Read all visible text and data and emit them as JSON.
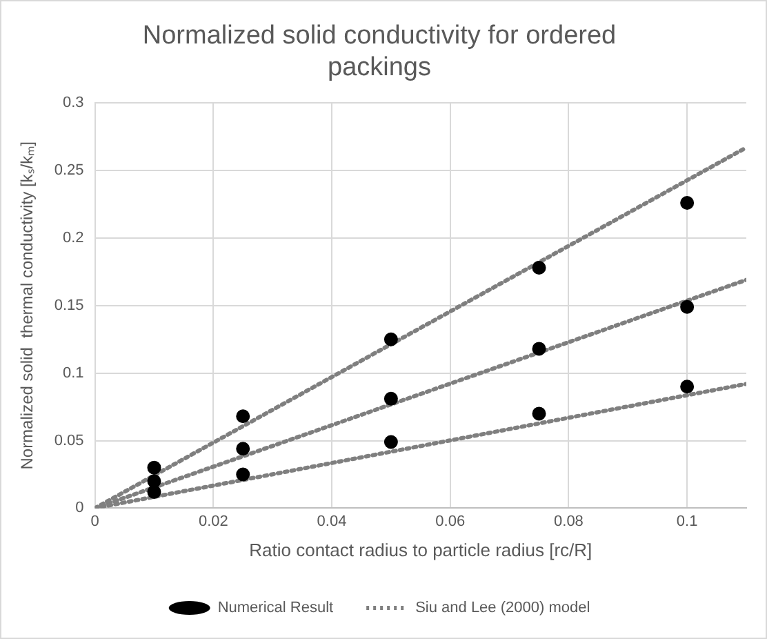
{
  "chart_data": {
    "type": "scatter",
    "title": "Normalized solid conductivity for ordered packings",
    "xlabel": "Ratio contact radius to particle radius [rc/R]",
    "ylabel": "Normalized solid  thermal conductivity [kₛ/kₘ]",
    "xlim": [
      0,
      0.11
    ],
    "xticks": [
      0,
      0.02,
      0.04,
      0.06,
      0.08,
      0.1
    ],
    "ylim": [
      0,
      0.3
    ],
    "yticks": [
      0,
      0.05,
      0.1,
      0.15,
      0.2,
      0.25,
      0.3
    ],
    "grid": true,
    "legend": "bottom",
    "series": [
      {
        "name": "Numerical Result",
        "marker": "circle",
        "color": "#000000",
        "x": [
          0.01,
          0.01,
          0.01,
          0.025,
          0.025,
          0.025,
          0.05,
          0.05,
          0.05,
          0.075,
          0.075,
          0.075,
          0.1,
          0.1,
          0.1
        ],
        "values": [
          0.03,
          0.02,
          0.012,
          0.068,
          0.044,
          0.025,
          0.125,
          0.081,
          0.049,
          0.178,
          0.118,
          0.07,
          0.226,
          0.149,
          0.09
        ]
      },
      {
        "name": "Siu and Lee (2000) model",
        "type": "line",
        "line_style": "dotted",
        "marker": "none",
        "color": "#7f7f7f",
        "x": [
          0,
          0.11
        ],
        "values": [
          0,
          0.267
        ]
      },
      {
        "type": "line",
        "line_style": "dotted",
        "marker": "none",
        "color": "#7f7f7f",
        "x": [
          0,
          0.11
        ],
        "values": [
          0,
          0.169
        ]
      },
      {
        "type": "line",
        "line_style": "dotted",
        "marker": "none",
        "color": "#7f7f7f",
        "x": [
          0,
          0.11
        ],
        "values": [
          0,
          0.092
        ]
      }
    ]
  }
}
